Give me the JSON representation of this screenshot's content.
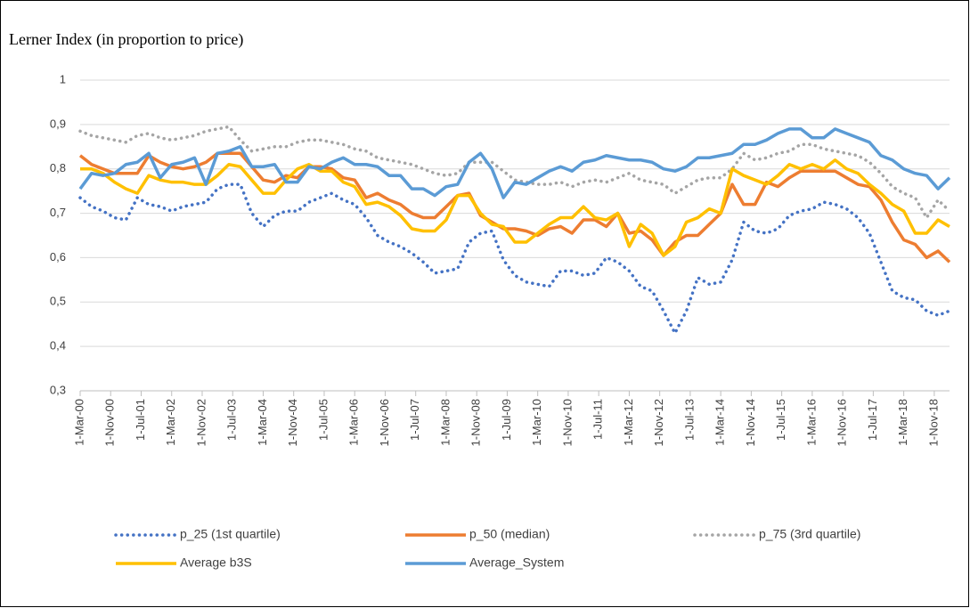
{
  "chart_data": {
    "type": "line",
    "title": "Lerner Index (in proportion to price)",
    "x": [
      "1-Mar-00",
      "1-Jun-00",
      "1-Sep-00",
      "1-Dec-00",
      "1-Mar-01",
      "1-Jun-01",
      "1-Sep-01",
      "1-Dec-01",
      "1-Mar-02",
      "1-Jun-02",
      "1-Sep-02",
      "1-Dec-02",
      "1-Mar-03",
      "1-Jun-03",
      "1-Sep-03",
      "1-Dec-03",
      "1-Mar-04",
      "1-Jun-04",
      "1-Sep-04",
      "1-Dec-04",
      "1-Mar-05",
      "1-Jun-05",
      "1-Sep-05",
      "1-Dec-05",
      "1-Mar-06",
      "1-Jun-06",
      "1-Sep-06",
      "1-Dec-06",
      "1-Mar-07",
      "1-Jun-07",
      "1-Sep-07",
      "1-Dec-07",
      "1-Mar-08",
      "1-Jun-08",
      "1-Sep-08",
      "1-Dec-08",
      "1-Mar-09",
      "1-Jun-09",
      "1-Sep-09",
      "1-Dec-09",
      "1-Mar-10",
      "1-Jun-10",
      "1-Sep-10",
      "1-Dec-10",
      "1-Mar-11",
      "1-Jun-11",
      "1-Sep-11",
      "1-Dec-11",
      "1-Mar-12",
      "1-Jun-12",
      "1-Sep-12",
      "1-Dec-12",
      "1-Mar-13",
      "1-Jun-13",
      "1-Sep-13",
      "1-Dec-13",
      "1-Mar-14",
      "1-Jun-14",
      "1-Sep-14",
      "1-Dec-14",
      "1-Mar-15",
      "1-Jun-15",
      "1-Sep-15",
      "1-Dec-15",
      "1-Mar-16",
      "1-Jun-16",
      "1-Sep-16",
      "1-Dec-16",
      "1-Mar-17",
      "1-Jun-17",
      "1-Sep-17",
      "1-Dec-17",
      "1-Mar-18",
      "1-Jun-18",
      "1-Sep-18",
      "1-Dec-18",
      "1-Mar-19"
    ],
    "xlim": [
      "1-Mar-00",
      "1-Mar-19"
    ],
    "xticks": [
      "1-Mar-00",
      "1-Nov-00",
      "1-Jul-01",
      "1-Mar-02",
      "1-Nov-02",
      "1-Jul-03",
      "1-Mar-04",
      "1-Nov-04",
      "1-Jul-05",
      "1-Mar-06",
      "1-Nov-06",
      "1-Jul-07",
      "1-Mar-08",
      "1-Nov-08",
      "1-Jul-09",
      "1-Mar-10",
      "1-Nov-10",
      "1-Jul-11",
      "1-Mar-12",
      "1-Nov-12",
      "1-Jul-13",
      "1-Mar-14",
      "1-Nov-14",
      "1-Jul-15",
      "1-Mar-16",
      "1-Nov-16",
      "1-Jul-17",
      "1-Mar-18",
      "1-Nov-18"
    ],
    "ylim": [
      0.3,
      1
    ],
    "yticks": [
      {
        "value": 0.3,
        "label": "0,3"
      },
      {
        "value": 0.4,
        "label": "0,4"
      },
      {
        "value": 0.5,
        "label": "0,5"
      },
      {
        "value": 0.6,
        "label": "0,6"
      },
      {
        "value": 0.7,
        "label": "0,7"
      },
      {
        "value": 0.8,
        "label": "0,8"
      },
      {
        "value": 0.9,
        "label": "0,9"
      },
      1
    ],
    "grid": true,
    "legend": "bottom",
    "series": [
      {
        "name": "p_25 (1st quartile)",
        "color": "#4472c4",
        "style": "dotted",
        "values": [
          0.735,
          0.715,
          0.705,
          0.69,
          0.685,
          0.735,
          0.72,
          0.715,
          0.705,
          0.715,
          0.72,
          0.725,
          0.755,
          0.765,
          0.765,
          0.7,
          0.67,
          0.695,
          0.705,
          0.705,
          0.725,
          0.735,
          0.745,
          0.73,
          0.72,
          0.69,
          0.65,
          0.635,
          0.625,
          0.61,
          0.59,
          0.565,
          0.57,
          0.575,
          0.635,
          0.655,
          0.66,
          0.595,
          0.56,
          0.545,
          0.54,
          0.535,
          0.57,
          0.57,
          0.56,
          0.565,
          0.6,
          0.59,
          0.57,
          0.535,
          0.525,
          0.48,
          0.43,
          0.48,
          0.555,
          0.54,
          0.545,
          0.595,
          0.68,
          0.66,
          0.655,
          0.665,
          0.695,
          0.705,
          0.71,
          0.725,
          0.72,
          0.71,
          0.69,
          0.655,
          0.59,
          0.525,
          0.51,
          0.505,
          0.48,
          0.47,
          0.48
        ]
      },
      {
        "name": "p_50 (median)",
        "color": "#ed7d31",
        "style": "solid",
        "values": [
          0.83,
          0.81,
          0.8,
          0.79,
          0.79,
          0.79,
          0.83,
          0.815,
          0.805,
          0.8,
          0.805,
          0.815,
          0.835,
          0.835,
          0.835,
          0.805,
          0.775,
          0.77,
          0.785,
          0.78,
          0.805,
          0.805,
          0.8,
          0.78,
          0.775,
          0.735,
          0.745,
          0.73,
          0.72,
          0.7,
          0.69,
          0.69,
          0.715,
          0.74,
          0.745,
          0.695,
          0.68,
          0.665,
          0.665,
          0.66,
          0.65,
          0.665,
          0.67,
          0.655,
          0.685,
          0.685,
          0.67,
          0.7,
          0.655,
          0.66,
          0.64,
          0.605,
          0.635,
          0.65,
          0.65,
          0.675,
          0.7,
          0.765,
          0.72,
          0.72,
          0.77,
          0.76,
          0.78,
          0.795,
          0.795,
          0.795,
          0.795,
          0.78,
          0.765,
          0.76,
          0.73,
          0.68,
          0.64,
          0.63,
          0.6,
          0.615,
          0.59
        ]
      },
      {
        "name": "p_75 (3rd quartile)",
        "color": "#a5a5a5",
        "style": "dotted",
        "values": [
          0.885,
          0.875,
          0.87,
          0.865,
          0.86,
          0.875,
          0.88,
          0.87,
          0.865,
          0.87,
          0.875,
          0.885,
          0.89,
          0.895,
          0.865,
          0.84,
          0.845,
          0.85,
          0.85,
          0.86,
          0.865,
          0.865,
          0.86,
          0.855,
          0.845,
          0.84,
          0.825,
          0.82,
          0.815,
          0.81,
          0.8,
          0.79,
          0.785,
          0.79,
          0.815,
          0.815,
          0.815,
          0.795,
          0.775,
          0.77,
          0.765,
          0.765,
          0.77,
          0.76,
          0.77,
          0.775,
          0.77,
          0.78,
          0.79,
          0.775,
          0.77,
          0.765,
          0.745,
          0.76,
          0.775,
          0.78,
          0.78,
          0.8,
          0.835,
          0.82,
          0.825,
          0.835,
          0.84,
          0.855,
          0.855,
          0.845,
          0.84,
          0.835,
          0.83,
          0.815,
          0.79,
          0.76,
          0.745,
          0.735,
          0.69,
          0.73,
          0.705
        ]
      },
      {
        "name": "Average b3S",
        "color": "#ffc000",
        "style": "solid",
        "values": [
          0.8,
          0.8,
          0.79,
          0.77,
          0.755,
          0.745,
          0.785,
          0.775,
          0.77,
          0.77,
          0.765,
          0.765,
          0.785,
          0.81,
          0.805,
          0.775,
          0.745,
          0.745,
          0.775,
          0.8,
          0.81,
          0.795,
          0.795,
          0.77,
          0.76,
          0.72,
          0.725,
          0.715,
          0.695,
          0.665,
          0.66,
          0.66,
          0.685,
          0.74,
          0.74,
          0.7,
          0.675,
          0.67,
          0.635,
          0.635,
          0.655,
          0.675,
          0.69,
          0.69,
          0.715,
          0.69,
          0.685,
          0.7,
          0.625,
          0.675,
          0.655,
          0.605,
          0.625,
          0.68,
          0.69,
          0.71,
          0.7,
          0.8,
          0.785,
          0.775,
          0.765,
          0.785,
          0.81,
          0.8,
          0.81,
          0.8,
          0.82,
          0.8,
          0.79,
          0.765,
          0.745,
          0.72,
          0.705,
          0.655,
          0.655,
          0.685,
          0.67
        ]
      },
      {
        "name": "Average_System",
        "color": "#5b9bd5",
        "style": "solid",
        "values": [
          0.755,
          0.79,
          0.785,
          0.79,
          0.81,
          0.815,
          0.835,
          0.78,
          0.81,
          0.815,
          0.825,
          0.765,
          0.835,
          0.84,
          0.85,
          0.805,
          0.805,
          0.81,
          0.77,
          0.77,
          0.805,
          0.8,
          0.815,
          0.825,
          0.81,
          0.81,
          0.805,
          0.785,
          0.785,
          0.755,
          0.755,
          0.74,
          0.76,
          0.765,
          0.815,
          0.835,
          0.8,
          0.735,
          0.77,
          0.765,
          0.78,
          0.795,
          0.805,
          0.795,
          0.815,
          0.82,
          0.83,
          0.825,
          0.82,
          0.82,
          0.815,
          0.8,
          0.795,
          0.805,
          0.825,
          0.825,
          0.83,
          0.835,
          0.855,
          0.855,
          0.865,
          0.88,
          0.89,
          0.89,
          0.87,
          0.87,
          0.89,
          0.88,
          0.87,
          0.86,
          0.83,
          0.82,
          0.8,
          0.79,
          0.785,
          0.755,
          0.78
        ]
      }
    ]
  }
}
